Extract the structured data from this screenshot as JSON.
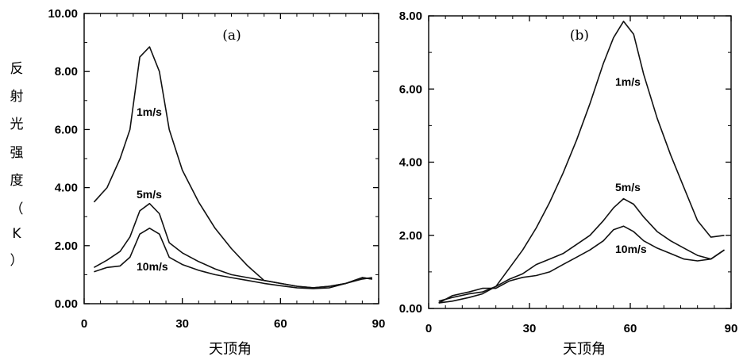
{
  "chart_data": [
    {
      "type": "line",
      "panel_label": "(a)",
      "xlabel": "天顶角",
      "ylabel": "反射光强度（K）",
      "xlim": [
        0,
        90
      ],
      "ylim": [
        0,
        10
      ],
      "x_ticks": [
        "0",
        "30",
        "60",
        "90"
      ],
      "y_ticks": [
        "0.00",
        "2.00",
        "4.00",
        "6.00",
        "8.00",
        "10.00"
      ],
      "grid": false,
      "series": [
        {
          "name": "1m/s",
          "x": [
            3,
            7,
            11,
            14,
            17,
            20,
            23,
            26,
            30,
            35,
            40,
            45,
            50,
            55,
            60,
            65,
            70,
            75,
            80,
            85,
            88
          ],
          "y": [
            3.5,
            4.0,
            5.0,
            6.0,
            8.5,
            8.85,
            8.0,
            6.0,
            4.6,
            3.5,
            2.6,
            1.9,
            1.3,
            0.8,
            0.7,
            0.6,
            0.55,
            0.6,
            0.7,
            0.9,
            0.85
          ]
        },
        {
          "name": "5m/s",
          "x": [
            3,
            7,
            11,
            14,
            17,
            20,
            23,
            26,
            30,
            35,
            40,
            45,
            50,
            55,
            60,
            65,
            70,
            75,
            80,
            85,
            88
          ],
          "y": [
            1.25,
            1.5,
            1.8,
            2.3,
            3.2,
            3.45,
            3.1,
            2.1,
            1.75,
            1.45,
            1.2,
            1.0,
            0.9,
            0.8,
            0.7,
            0.6,
            0.55,
            0.6,
            0.7,
            0.85,
            0.9
          ]
        },
        {
          "name": "10m/s",
          "x": [
            3,
            7,
            11,
            14,
            17,
            20,
            23,
            26,
            30,
            35,
            40,
            45,
            50,
            55,
            60,
            65,
            70,
            75,
            80,
            85,
            88
          ],
          "y": [
            1.1,
            1.25,
            1.3,
            1.6,
            2.4,
            2.6,
            2.4,
            1.6,
            1.35,
            1.15,
            1.0,
            0.9,
            0.8,
            0.7,
            0.62,
            0.55,
            0.52,
            0.55,
            0.7,
            0.9,
            0.85
          ]
        }
      ]
    },
    {
      "type": "line",
      "panel_label": "(b)",
      "xlabel": "天顶角",
      "ylabel": "",
      "xlim": [
        0,
        90
      ],
      "ylim": [
        0,
        8
      ],
      "x_ticks": [
        "0",
        "30",
        "60",
        "90"
      ],
      "y_ticks": [
        "0.00",
        "2.00",
        "4.00",
        "6.00",
        "8.00"
      ],
      "grid": false,
      "series": [
        {
          "name": "1m/s",
          "x": [
            3,
            7,
            12,
            16,
            20,
            24,
            28,
            32,
            36,
            40,
            44,
            48,
            52,
            55,
            58,
            61,
            64,
            68,
            72,
            76,
            80,
            84,
            88
          ],
          "y": [
            0.15,
            0.2,
            0.3,
            0.4,
            0.6,
            1.1,
            1.6,
            2.2,
            2.9,
            3.7,
            4.6,
            5.6,
            6.7,
            7.4,
            7.85,
            7.5,
            6.4,
            5.2,
            4.2,
            3.3,
            2.4,
            1.95,
            2.0
          ]
        },
        {
          "name": "5m/s",
          "x": [
            3,
            7,
            12,
            16,
            20,
            24,
            28,
            32,
            36,
            40,
            44,
            48,
            52,
            55,
            58,
            61,
            64,
            68,
            72,
            76,
            80,
            84,
            88
          ],
          "y": [
            0.2,
            0.3,
            0.4,
            0.45,
            0.6,
            0.8,
            0.95,
            1.2,
            1.35,
            1.5,
            1.75,
            2.0,
            2.4,
            2.75,
            3.0,
            2.85,
            2.5,
            2.1,
            1.85,
            1.65,
            1.45,
            1.35,
            1.6
          ]
        },
        {
          "name": "10m/s",
          "x": [
            3,
            7,
            12,
            16,
            20,
            24,
            28,
            32,
            36,
            40,
            44,
            48,
            52,
            55,
            58,
            61,
            64,
            68,
            72,
            76,
            80,
            84,
            88
          ],
          "y": [
            0.15,
            0.35,
            0.45,
            0.55,
            0.55,
            0.75,
            0.85,
            0.9,
            1.0,
            1.2,
            1.4,
            1.6,
            1.85,
            2.15,
            2.25,
            2.1,
            1.85,
            1.65,
            1.5,
            1.35,
            1.3,
            1.35,
            1.6
          ]
        }
      ],
      "curve_labels": null
    }
  ]
}
